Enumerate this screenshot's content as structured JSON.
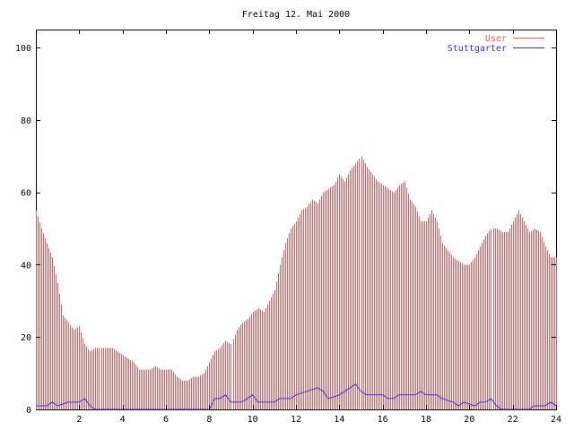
{
  "chart_data": {
    "type": "bar",
    "title": "Freitag 12. Mai 2000",
    "xlabel": "",
    "ylabel": "",
    "xlim": [
      0,
      24
    ],
    "ylim": [
      0,
      105
    ],
    "x_ticks": [
      2,
      4,
      6,
      8,
      10,
      12,
      14,
      16,
      18,
      20,
      22,
      24
    ],
    "y_ticks": [
      0,
      20,
      40,
      60,
      80,
      100
    ],
    "grid": false,
    "legend_position": "top-right",
    "series_colors": {
      "User": "#e06060",
      "Stuttgarter": "#3030e0"
    },
    "series": [
      {
        "name": "User",
        "style": "impulses",
        "points": [
          [
            0.0,
            55
          ],
          [
            0.25,
            50
          ],
          [
            0.5,
            46
          ],
          [
            0.75,
            42
          ],
          [
            1.0,
            35
          ],
          [
            1.25,
            26
          ],
          [
            1.5,
            24
          ],
          [
            1.75,
            22
          ],
          [
            2.0,
            23
          ],
          [
            2.25,
            18
          ],
          [
            2.5,
            16
          ],
          [
            2.75,
            17
          ],
          [
            3.0,
            17
          ],
          [
            3.25,
            17
          ],
          [
            3.5,
            17
          ],
          [
            3.75,
            16
          ],
          [
            4.0,
            15
          ],
          [
            4.25,
            14
          ],
          [
            4.5,
            13
          ],
          [
            4.75,
            11
          ],
          [
            5.0,
            11
          ],
          [
            5.25,
            11
          ],
          [
            5.5,
            12
          ],
          [
            5.75,
            11
          ],
          [
            6.0,
            11
          ],
          [
            6.25,
            11
          ],
          [
            6.5,
            9
          ],
          [
            6.75,
            8
          ],
          [
            7.0,
            8
          ],
          [
            7.25,
            9
          ],
          [
            7.5,
            9
          ],
          [
            7.75,
            10
          ],
          [
            8.0,
            13
          ],
          [
            8.25,
            16
          ],
          [
            8.5,
            17
          ],
          [
            8.75,
            19
          ],
          [
            9.0,
            18
          ],
          [
            9.25,
            22
          ],
          [
            9.5,
            24
          ],
          [
            9.75,
            25
          ],
          [
            10.0,
            27
          ],
          [
            10.25,
            28
          ],
          [
            10.5,
            27
          ],
          [
            10.75,
            30
          ],
          [
            11.0,
            33
          ],
          [
            11.25,
            40
          ],
          [
            11.5,
            46
          ],
          [
            11.75,
            50
          ],
          [
            12.0,
            52
          ],
          [
            12.25,
            55
          ],
          [
            12.5,
            56
          ],
          [
            12.75,
            58
          ],
          [
            13.0,
            57
          ],
          [
            13.25,
            60
          ],
          [
            13.5,
            61
          ],
          [
            13.75,
            62
          ],
          [
            14.0,
            65
          ],
          [
            14.25,
            63
          ],
          [
            14.5,
            66
          ],
          [
            14.75,
            68
          ],
          [
            15.0,
            70
          ],
          [
            15.25,
            67
          ],
          [
            15.5,
            65
          ],
          [
            15.75,
            63
          ],
          [
            16.0,
            62
          ],
          [
            16.25,
            61
          ],
          [
            16.5,
            60
          ],
          [
            16.75,
            62
          ],
          [
            17.0,
            63
          ],
          [
            17.25,
            58
          ],
          [
            17.5,
            56
          ],
          [
            17.75,
            52
          ],
          [
            18.0,
            52
          ],
          [
            18.25,
            55
          ],
          [
            18.5,
            52
          ],
          [
            18.75,
            46
          ],
          [
            19.0,
            44
          ],
          [
            19.25,
            42
          ],
          [
            19.5,
            41
          ],
          [
            19.75,
            40
          ],
          [
            20.0,
            40
          ],
          [
            20.25,
            42
          ],
          [
            20.5,
            45
          ],
          [
            20.75,
            48
          ],
          [
            21.0,
            50
          ],
          [
            21.25,
            50
          ],
          [
            21.5,
            49
          ],
          [
            21.75,
            49
          ],
          [
            22.0,
            52
          ],
          [
            22.25,
            55
          ],
          [
            22.5,
            52
          ],
          [
            22.75,
            49
          ],
          [
            23.0,
            50
          ],
          [
            23.25,
            49
          ],
          [
            23.5,
            45
          ],
          [
            23.75,
            42
          ],
          [
            24.0,
            42
          ]
        ]
      },
      {
        "name": "Stuttgarter",
        "style": "lines",
        "points": [
          [
            0.0,
            1
          ],
          [
            0.5,
            1
          ],
          [
            0.75,
            2
          ],
          [
            1.0,
            1
          ],
          [
            1.5,
            2
          ],
          [
            2.0,
            2
          ],
          [
            2.25,
            3
          ],
          [
            2.5,
            1
          ],
          [
            2.75,
            0
          ],
          [
            3.25,
            0
          ],
          [
            7.75,
            0
          ],
          [
            8.0,
            0
          ],
          [
            8.25,
            3
          ],
          [
            8.5,
            3
          ],
          [
            8.75,
            4
          ],
          [
            9.0,
            2
          ],
          [
            9.5,
            2
          ],
          [
            9.75,
            3
          ],
          [
            10.0,
            4
          ],
          [
            10.25,
            2
          ],
          [
            11.0,
            2
          ],
          [
            11.25,
            3
          ],
          [
            11.75,
            3
          ],
          [
            12.0,
            4
          ],
          [
            12.5,
            5
          ],
          [
            13.0,
            6
          ],
          [
            13.25,
            5
          ],
          [
            13.5,
            3
          ],
          [
            14.0,
            4
          ],
          [
            14.5,
            6
          ],
          [
            14.75,
            7
          ],
          [
            15.0,
            5
          ],
          [
            15.25,
            4
          ],
          [
            16.0,
            4
          ],
          [
            16.25,
            3
          ],
          [
            16.5,
            3
          ],
          [
            16.75,
            4
          ],
          [
            17.5,
            4
          ],
          [
            17.75,
            5
          ],
          [
            18.0,
            4
          ],
          [
            18.5,
            4
          ],
          [
            18.75,
            3
          ],
          [
            19.25,
            2
          ],
          [
            19.5,
            1
          ],
          [
            19.75,
            2
          ],
          [
            20.25,
            1
          ],
          [
            20.5,
            2
          ],
          [
            20.75,
            2
          ],
          [
            21.0,
            3
          ],
          [
            21.25,
            1
          ],
          [
            21.5,
            0
          ],
          [
            22.75,
            0
          ],
          [
            23.0,
            1
          ],
          [
            23.5,
            1
          ],
          [
            23.75,
            2
          ],
          [
            24.0,
            1
          ]
        ]
      }
    ]
  }
}
